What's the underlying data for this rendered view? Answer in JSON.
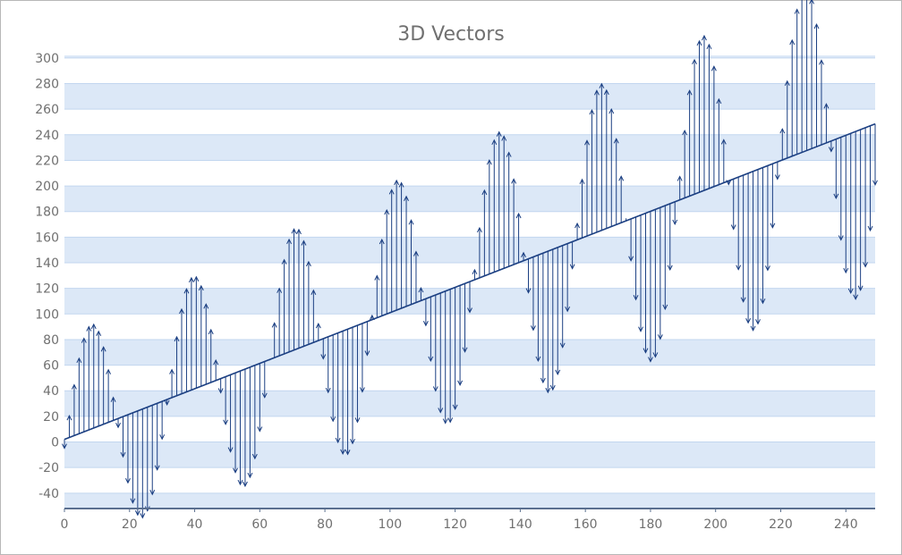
{
  "chart_data": {
    "type": "vector",
    "title": "3D Vectors",
    "xlabel": "",
    "ylabel": "",
    "xlim": [
      0,
      249
    ],
    "ylim": [
      -52,
      302
    ],
    "x_ticks": [
      0,
      20,
      40,
      60,
      80,
      100,
      120,
      140,
      160,
      180,
      200,
      220,
      240
    ],
    "y_ticks": [
      -40,
      -20,
      0,
      20,
      40,
      60,
      80,
      100,
      120,
      140,
      160,
      180,
      200,
      220,
      240,
      260,
      280,
      300
    ],
    "grid": "alternating horizontal bands",
    "legend": "none",
    "series": [
      {
        "base": {
          "x_start": 0,
          "x_end": 249,
          "step": 1.5,
          "y_at_x0": 2,
          "slope": 0.99
        },
        "vector_component": {
          "amplitude_at_x0": 80,
          "amplitude_slope": 0.21,
          "period": 31.3,
          "phase_deg": -5
        },
        "base_line_x": [
          0,
          249
        ],
        "base_line_y": [
          2,
          248.5
        ]
      }
    ],
    "colors": {
      "vector": "#1b3f82",
      "band": "#dce8f7",
      "band_line": "#c2d6ef",
      "axis": "#5a6f8f"
    }
  }
}
